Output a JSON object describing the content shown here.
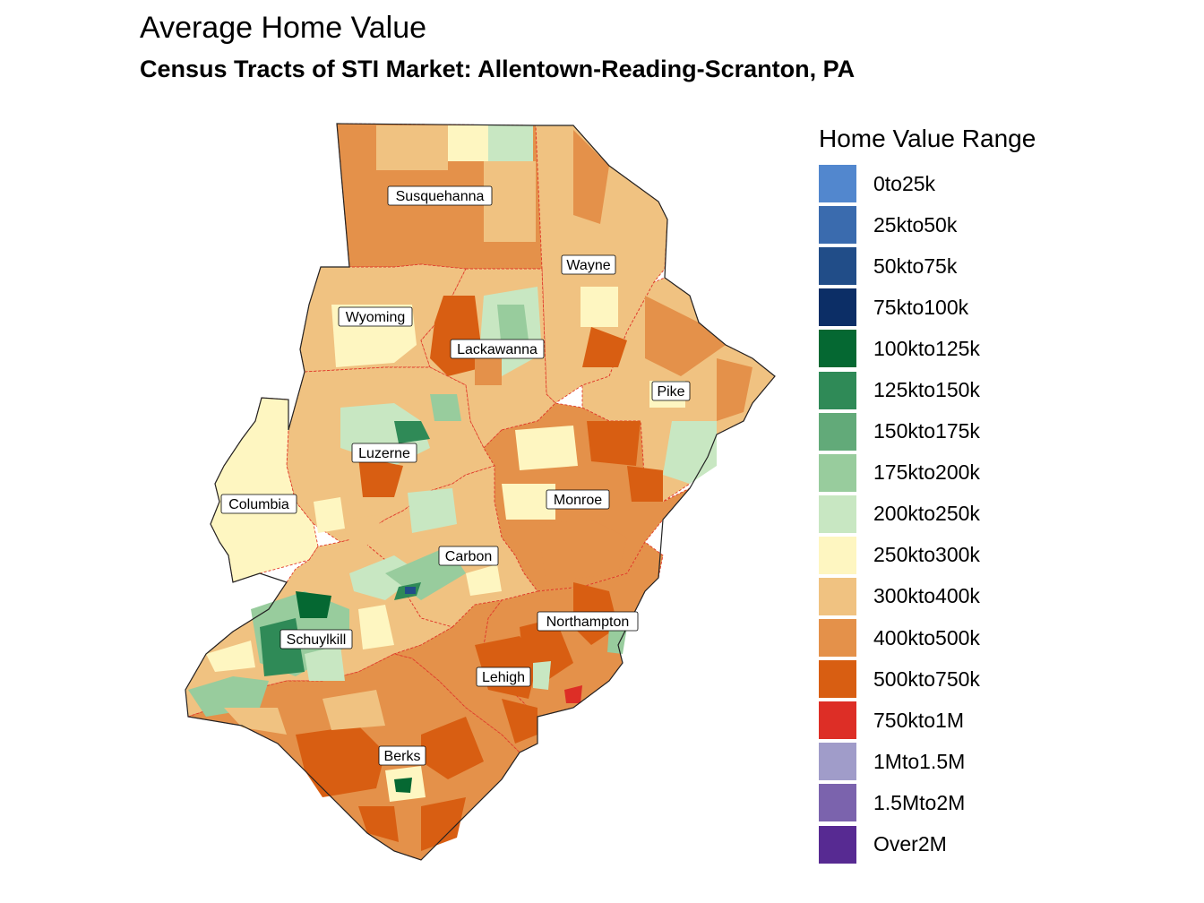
{
  "title": "Average Home Value",
  "subtitle": "Census Tracts of STI Market: Allentown-Reading-Scranton, PA",
  "legend": {
    "title": "Home Value Range",
    "items": [
      {
        "label": "0to25k",
        "color": "#5287CE"
      },
      {
        "label": "25kto50k",
        "color": "#3A6BAE"
      },
      {
        "label": "50kto75k",
        "color": "#214D88"
      },
      {
        "label": "75kto100k",
        "color": "#0C2E66"
      },
      {
        "label": "100kto125k",
        "color": "#056832"
      },
      {
        "label": "125kto150k",
        "color": "#2F8A57"
      },
      {
        "label": "150kto175k",
        "color": "#62AA79"
      },
      {
        "label": "175kto200k",
        "color": "#98CC9D"
      },
      {
        "label": "200kto250k",
        "color": "#C8E7C2"
      },
      {
        "label": "250kto300k",
        "color": "#FEF6C1"
      },
      {
        "label": "300kto400k",
        "color": "#F0C281"
      },
      {
        "label": "400kto500k",
        "color": "#E4914A"
      },
      {
        "label": "500kto750k",
        "color": "#D85E12"
      },
      {
        "label": "750kto1M",
        "color": "#DD2E26"
      },
      {
        "label": "1Mto1.5M",
        "color": "#A09CC9"
      },
      {
        "label": "1.5Mto2M",
        "color": "#7B63AD"
      },
      {
        "label": "Over2M",
        "color": "#572A92"
      }
    ]
  },
  "counties": [
    {
      "name": "Susquehanna",
      "fill": "#E4914A"
    },
    {
      "name": "Wayne",
      "fill": "#F0C281"
    },
    {
      "name": "Wyoming",
      "fill": "#F0C281"
    },
    {
      "name": "Lackawanna",
      "fill": "#F0C281"
    },
    {
      "name": "Pike",
      "fill": "#F0C281"
    },
    {
      "name": "Luzerne",
      "fill": "#F0C281"
    },
    {
      "name": "Columbia",
      "fill": "#FEF6C1"
    },
    {
      "name": "Monroe",
      "fill": "#E4914A"
    },
    {
      "name": "Carbon",
      "fill": "#F0C281"
    },
    {
      "name": "Northampton",
      "fill": "#E4914A"
    },
    {
      "name": "Schuylkill",
      "fill": "#F0C281"
    },
    {
      "name": "Lehigh",
      "fill": "#E4914A"
    },
    {
      "name": "Berks",
      "fill": "#E4914A"
    }
  ]
}
